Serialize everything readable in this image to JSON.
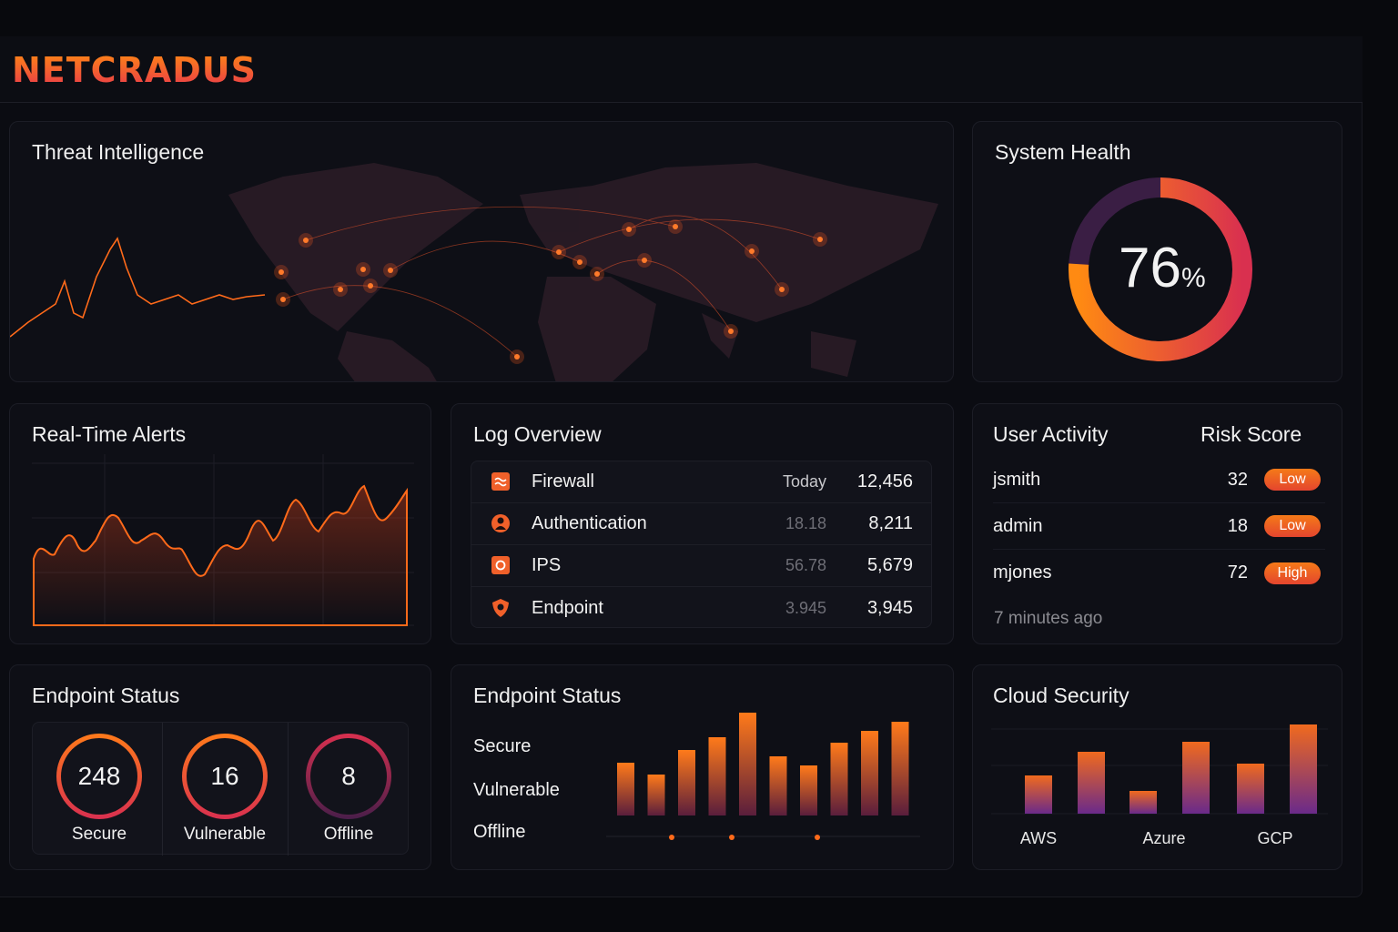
{
  "app": {
    "logo": "NETCRADUS"
  },
  "threat": {
    "title": "Threat Intelligence"
  },
  "health": {
    "title": "System Health",
    "value": 76,
    "unit": "%"
  },
  "alerts": {
    "title": "Real-Time Alerts"
  },
  "logs": {
    "title": "Log Overview",
    "rows": [
      {
        "icon": "firewall-icon",
        "name": "Firewall",
        "meta": "Today",
        "count": "12,456"
      },
      {
        "icon": "user-icon",
        "name": "Authentication",
        "meta": "18.18",
        "count": "8,211"
      },
      {
        "icon": "ips-icon",
        "name": "IPS",
        "meta": "56.78",
        "count": "5,679"
      },
      {
        "icon": "shield-icon",
        "name": "Endpoint",
        "meta": "3.945",
        "count": "3,945"
      }
    ]
  },
  "users": {
    "title": "User Activity",
    "risk_header": "Risk Score",
    "rows": [
      {
        "name": "jsmith",
        "score": "32",
        "level": "Low"
      },
      {
        "name": "admin",
        "score": "18",
        "level": "Low"
      },
      {
        "name": "mjones",
        "score": "72",
        "level": "High"
      }
    ],
    "updated": "7 minutes ago"
  },
  "endpoint": {
    "title": "Endpoint Status",
    "items": [
      {
        "value": "248",
        "label": "Secure"
      },
      {
        "value": "16",
        "label": "Vulnerable"
      },
      {
        "value": "8",
        "label": "Offline"
      }
    ]
  },
  "endpoint2": {
    "title": "Endpoint Status",
    "legend": [
      "Secure",
      "Vulnerable",
      "Offline"
    ]
  },
  "cloud": {
    "title": "Cloud Security",
    "providers": [
      "AWS",
      "Azure",
      "GCP"
    ]
  },
  "colors": {
    "accent": "#ff7a1a",
    "accent2": "#e8374c",
    "purple": "#6a2a8a"
  },
  "chart_data": [
    {
      "type": "bar",
      "title": "Endpoint Status",
      "values": [
        58,
        45,
        72,
        86,
        113,
        65,
        55,
        80,
        93,
        103
      ]
    },
    {
      "type": "bar",
      "title": "Cloud Security",
      "categories": [
        "AWS",
        "Azure",
        "GCP"
      ],
      "series": [
        {
          "values": [
            42,
            25,
            55
          ]
        },
        {
          "values": [
            68,
            79,
            98
          ]
        }
      ]
    }
  ]
}
